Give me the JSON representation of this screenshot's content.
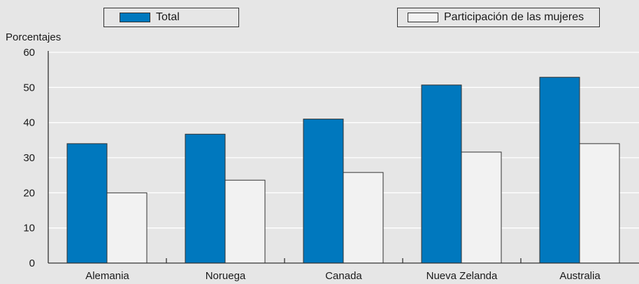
{
  "colors": {
    "background": "#e6e6e6",
    "total": "#0078be",
    "women": "#f2f2f2",
    "grid": "#ffffff",
    "axis": "#333333"
  },
  "legend": {
    "position": "top"
  },
  "chart_data": {
    "type": "bar",
    "ylabel": "Porcentajes",
    "ylim": [
      0,
      60
    ],
    "yticks": [
      0,
      10,
      20,
      30,
      40,
      50,
      60
    ],
    "grid": true,
    "categories": [
      "Alemania",
      "Noruega",
      "Canada",
      "Nueva Zelanda",
      "Australia"
    ],
    "series": [
      {
        "name": "Total",
        "values": [
          34,
          36.7,
          41,
          50.7,
          52.9
        ]
      },
      {
        "name": "Participación de las mujeres",
        "values": [
          20,
          23.6,
          25.8,
          31.6,
          34
        ]
      }
    ]
  }
}
